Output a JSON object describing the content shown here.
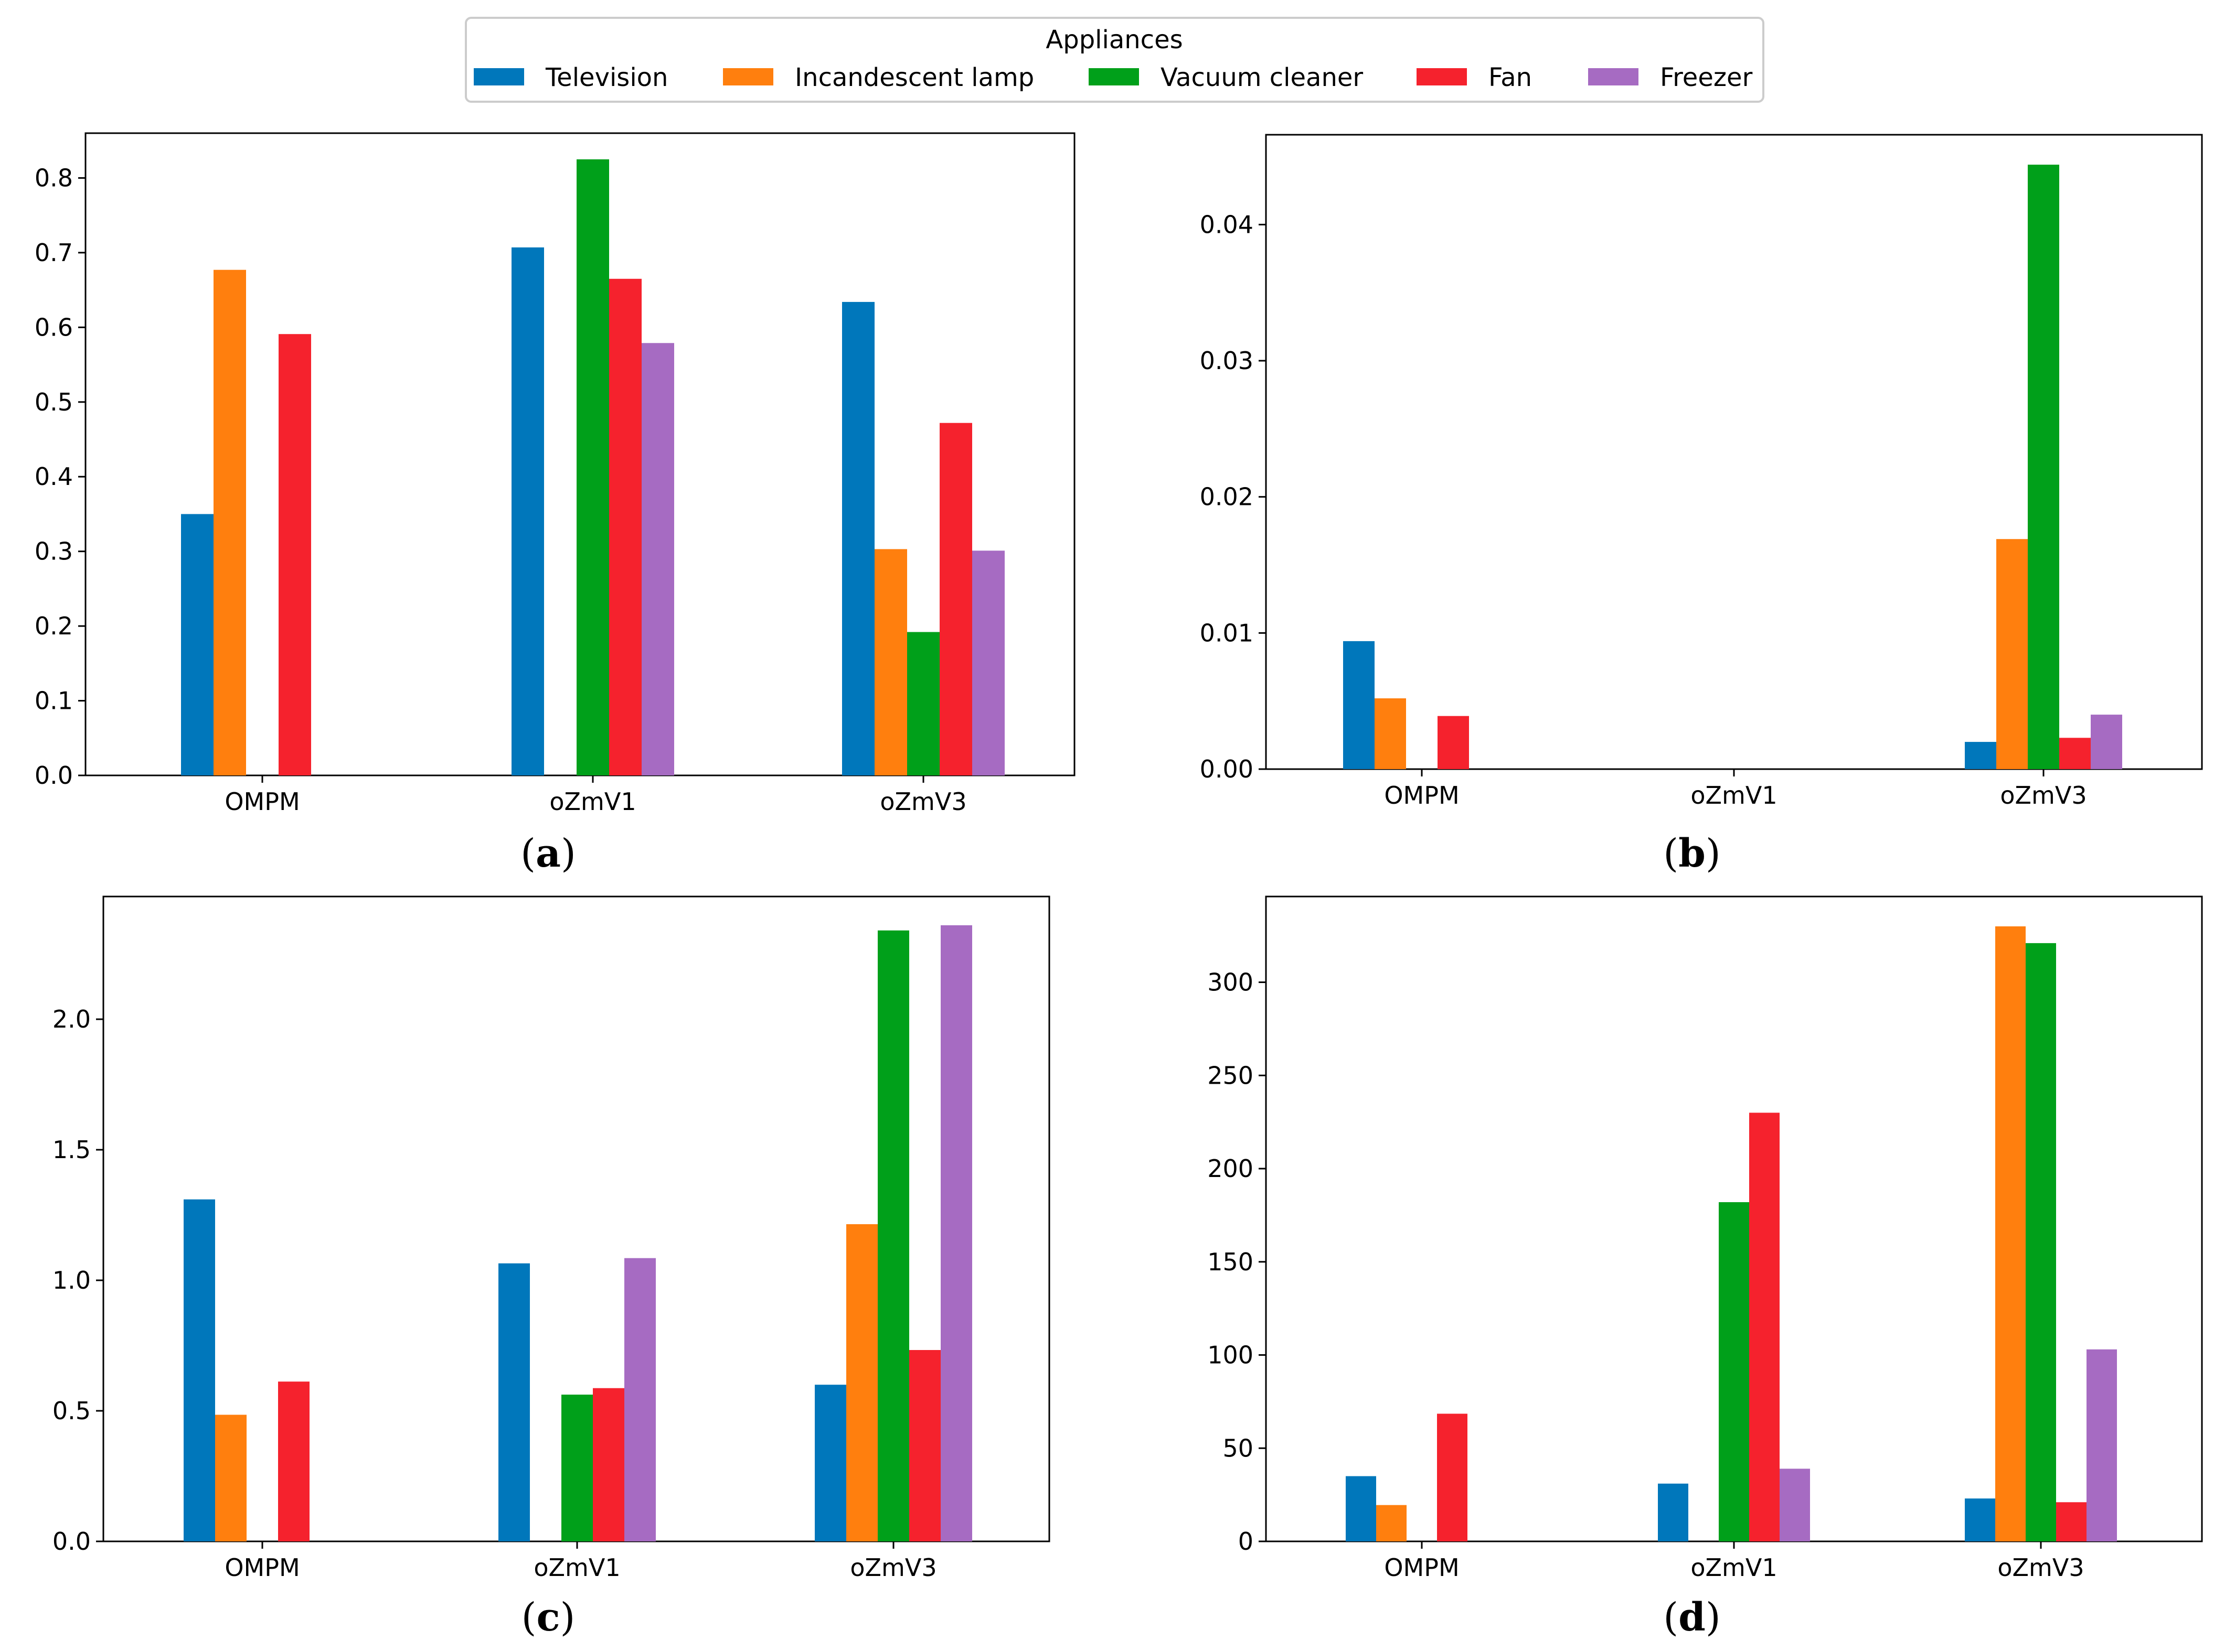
{
  "legend": {
    "title": "Appliances",
    "entries": [
      {
        "name": "Television",
        "color": "#0077bb"
      },
      {
        "name": "Incandescent lamp",
        "color": "#ff7f0e"
      },
      {
        "name": "Vacuum cleaner",
        "color": "#00a01a"
      },
      {
        "name": "Fan",
        "color": "#f5222d"
      },
      {
        "name": "Freezer",
        "color": "#a66bc2"
      }
    ]
  },
  "chart_data": [
    {
      "type": "bar",
      "caption": "a",
      "categories": [
        "OMPM",
        "oZmV1",
        "oZmV3"
      ],
      "series": [
        {
          "name": "Television",
          "values": [
            0.35,
            0.707,
            0.634
          ]
        },
        {
          "name": "Incandescent lamp",
          "values": [
            0.677,
            0,
            0.303
          ]
        },
        {
          "name": "Vacuum cleaner",
          "values": [
            0,
            0.825,
            0.192
          ]
        },
        {
          "name": "Fan",
          "values": [
            0.591,
            0.665,
            0.472
          ]
        },
        {
          "name": "Freezer",
          "values": [
            0,
            0.579,
            0.301
          ]
        }
      ],
      "ylim": [
        0,
        0.86
      ],
      "yticks": [
        0.0,
        0.1,
        0.2,
        0.3,
        0.4,
        0.5,
        0.6,
        0.7,
        0.8
      ],
      "ytick_labels": [
        "0.0",
        "0.1",
        "0.2",
        "0.3",
        "0.4",
        "0.5",
        "0.6",
        "0.7",
        "0.8"
      ]
    },
    {
      "type": "bar",
      "caption": "b",
      "categories": [
        "OMPM",
        "oZmV1",
        "oZmV3"
      ],
      "series": [
        {
          "name": "Television",
          "values": [
            0.0094,
            0,
            0.002
          ]
        },
        {
          "name": "Incandescent lamp",
          "values": [
            0.0052,
            0,
            0.0169
          ]
        },
        {
          "name": "Vacuum cleaner",
          "values": [
            0,
            0,
            0.0444
          ]
        },
        {
          "name": "Fan",
          "values": [
            0.0039,
            0,
            0.0023
          ]
        },
        {
          "name": "Freezer",
          "values": [
            0,
            0,
            0.004
          ]
        }
      ],
      "ylim": [
        0,
        0.0466
      ],
      "yticks": [
        0.0,
        0.01,
        0.02,
        0.03,
        0.04
      ],
      "ytick_labels": [
        "0.00",
        "0.01",
        "0.02",
        "0.03",
        "0.04"
      ]
    },
    {
      "type": "bar",
      "caption": "c",
      "categories": [
        "OMPM",
        "oZmV1",
        "oZmV3"
      ],
      "series": [
        {
          "name": "Television",
          "values": [
            1.31,
            1.065,
            0.6
          ]
        },
        {
          "name": "Incandescent lamp",
          "values": [
            0.485,
            0,
            1.215
          ]
        },
        {
          "name": "Vacuum cleaner",
          "values": [
            0,
            0.562,
            2.34
          ]
        },
        {
          "name": "Fan",
          "values": [
            0.612,
            0.587,
            0.733
          ]
        },
        {
          "name": "Freezer",
          "values": [
            0,
            1.085,
            2.36
          ]
        }
      ],
      "ylim": [
        0,
        2.47
      ],
      "yticks": [
        0.0,
        0.5,
        1.0,
        1.5,
        2.0
      ],
      "ytick_labels": [
        "0.0",
        "0.5",
        "1.0",
        "1.5",
        "2.0"
      ]
    },
    {
      "type": "bar",
      "caption": "d",
      "categories": [
        "OMPM",
        "oZmV1",
        "oZmV3"
      ],
      "series": [
        {
          "name": "Television",
          "values": [
            35,
            31,
            23
          ]
        },
        {
          "name": "Incandescent lamp",
          "values": [
            19.5,
            0,
            330
          ]
        },
        {
          "name": "Vacuum cleaner",
          "values": [
            0,
            182,
            321
          ]
        },
        {
          "name": "Fan",
          "values": [
            68.5,
            230,
            21
          ]
        },
        {
          "name": "Freezer",
          "values": [
            0,
            39,
            103
          ]
        }
      ],
      "ylim": [
        0,
        346
      ],
      "yticks": [
        0,
        50,
        100,
        150,
        200,
        250,
        300
      ],
      "ytick_labels": [
        "0",
        "50",
        "100",
        "150",
        "200",
        "250",
        "300"
      ]
    }
  ]
}
